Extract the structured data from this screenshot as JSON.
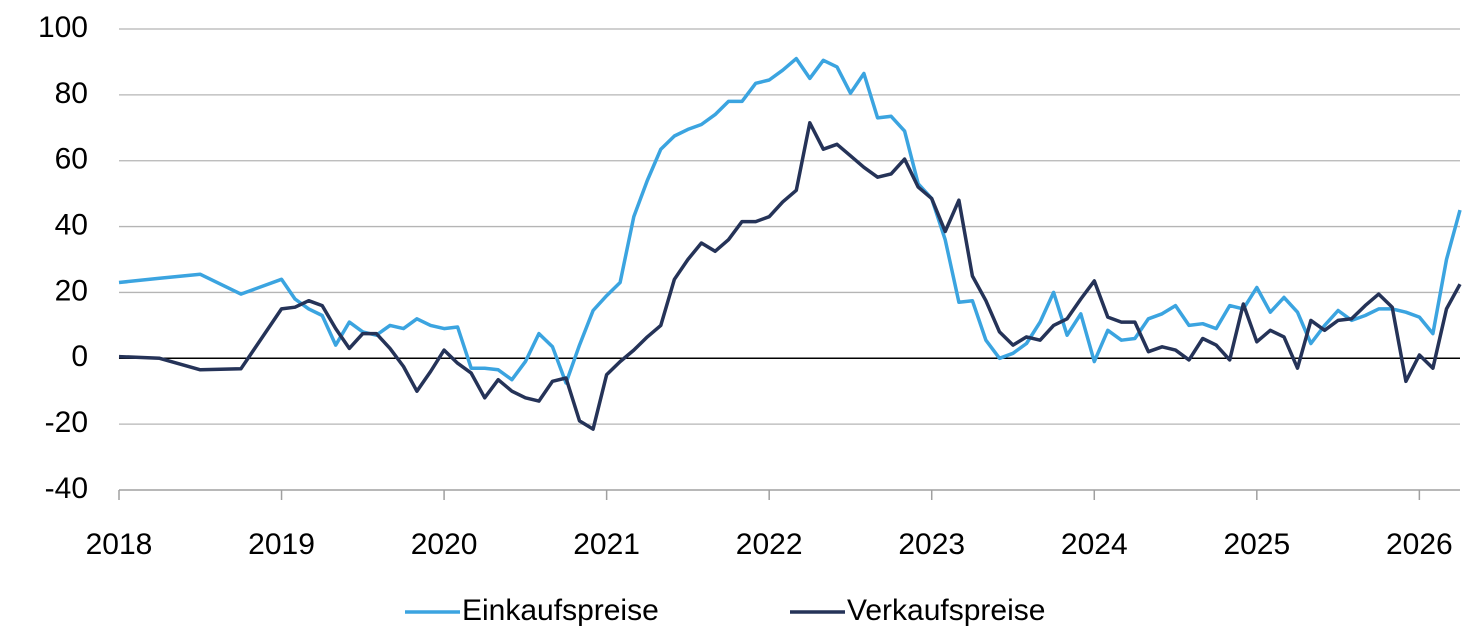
{
  "chart_data": {
    "type": "line",
    "x": [
      2018,
      2018.25,
      2018.5,
      2018.75,
      2019,
      2019.083,
      2019.167,
      2019.25,
      2019.333,
      2019.417,
      2019.5,
      2019.583,
      2019.667,
      2019.75,
      2019.833,
      2019.917,
      2020,
      2020.083,
      2020.167,
      2020.25,
      2020.333,
      2020.417,
      2020.5,
      2020.583,
      2020.667,
      2020.75,
      2020.833,
      2020.917,
      2021,
      2021.083,
      2021.167,
      2021.25,
      2021.333,
      2021.417,
      2021.5,
      2021.583,
      2021.667,
      2021.75,
      2021.833,
      2021.917,
      2022,
      2022.083,
      2022.167,
      2022.25,
      2022.333,
      2022.417,
      2022.5,
      2022.583,
      2022.667,
      2022.75,
      2022.833,
      2022.917,
      2023,
      2023.083,
      2023.167,
      2023.25,
      2023.333,
      2023.417,
      2023.5,
      2023.583,
      2023.667,
      2023.75,
      2023.833,
      2023.917,
      2024,
      2024.083,
      2024.167,
      2024.25,
      2024.333,
      2024.417,
      2024.5,
      2024.583,
      2024.667,
      2024.75,
      2024.833,
      2024.917,
      2025,
      2025.083,
      2025.167,
      2025.25,
      2025.333,
      2025.417,
      2025.5,
      2025.583,
      2025.667,
      2025.75,
      2025.833,
      2025.917,
      2026,
      2026.083,
      2026.167,
      2026.25
    ],
    "series": [
      {
        "name": "Einkaufspreise",
        "color": "#3ba4e0",
        "values": [
          23,
          24.3,
          25.5,
          19.5,
          24,
          18,
          15,
          13,
          4,
          11,
          8,
          7,
          10,
          9,
          12,
          10,
          9,
          9.5,
          -3,
          -3,
          -3.5,
          -6.5,
          -1,
          7.5,
          3.5,
          -7.5,
          4,
          14.5,
          19,
          23,
          43,
          54,
          63.5,
          67.5,
          69.5,
          71,
          74,
          78,
          78,
          83.5,
          84.5,
          87.5,
          91,
          85,
          90.5,
          88.5,
          80.5,
          86.5,
          73,
          73.5,
          69,
          53,
          48.5,
          36,
          17,
          17.5,
          5.5,
          0,
          1.5,
          4.5,
          11,
          20,
          7,
          13.5,
          -1,
          8.5,
          5.5,
          6,
          12,
          13.5,
          16,
          10,
          10.5,
          9,
          16,
          15,
          21.5,
          14,
          18.5,
          14,
          4.5,
          10,
          14.5,
          11.5,
          13,
          15,
          15,
          14,
          12.5,
          7.5,
          30,
          45
        ]
      },
      {
        "name": "Verkaufspreise",
        "color": "#253358",
        "values": [
          0.5,
          0,
          -3.5,
          -3.2,
          15,
          15.5,
          17.5,
          16,
          9,
          3,
          7.5,
          7.5,
          3,
          -2.5,
          -10,
          -4,
          2.5,
          -1.5,
          -4.5,
          -12,
          -6.5,
          -10,
          -12,
          -13,
          -7,
          -6,
          -19,
          -21.5,
          -5,
          -1,
          2.5,
          6.5,
          10,
          24,
          30,
          35,
          32.5,
          36,
          41.5,
          41.5,
          43,
          47.5,
          51,
          71.5,
          63.5,
          65,
          61.5,
          58,
          55,
          56,
          60.5,
          52,
          48.5,
          38.5,
          48,
          25,
          17.5,
          8,
          4,
          6.5,
          5.5,
          10,
          12,
          18,
          23.5,
          12.5,
          11,
          11,
          2,
          3.5,
          2.5,
          -0.5,
          6,
          4,
          -0.5,
          16.5,
          5,
          8.5,
          6.5,
          -3,
          11.5,
          8.5,
          11.5,
          12,
          16,
          19.5,
          15.5,
          -7,
          1,
          -3,
          15,
          22.5
        ]
      }
    ],
    "xlim": [
      2018,
      2026.25
    ],
    "xticks": [
      2018,
      2019,
      2020,
      2021,
      2022,
      2023,
      2024,
      2025,
      2026
    ],
    "ylim": [
      -40,
      100
    ],
    "yticks": [
      -40,
      -20,
      0,
      20,
      40,
      60,
      80,
      100
    ],
    "grid": true,
    "legend": "bottom"
  }
}
